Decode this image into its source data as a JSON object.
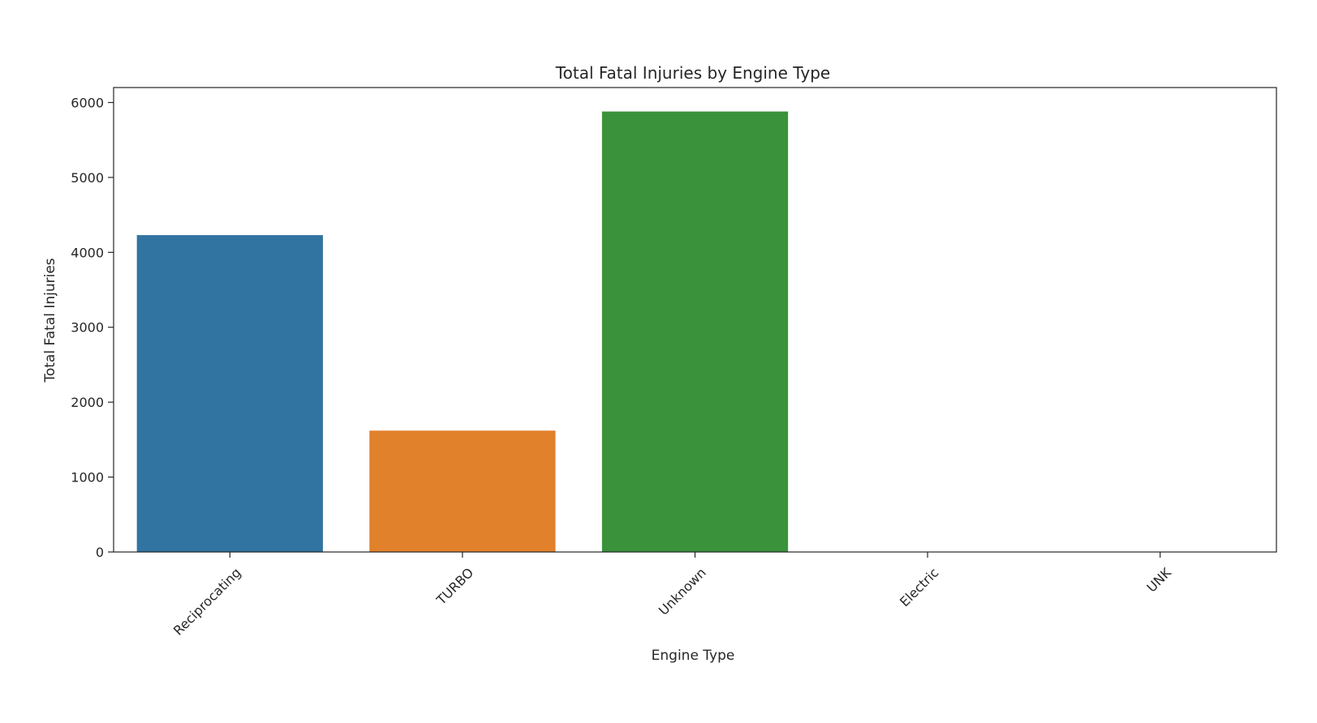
{
  "chart_data": {
    "type": "bar",
    "title": "Total Fatal Injuries by Engine Type",
    "xlabel": "Engine Type",
    "ylabel": "Total Fatal Injuries",
    "categories": [
      "Reciprocating",
      "TURBO",
      "Unknown",
      "Electric",
      "UNK"
    ],
    "values": [
      4230,
      1620,
      5880,
      0,
      0
    ],
    "colors": [
      "#3274a1",
      "#e1812c",
      "#3a923a",
      "#c03d3e",
      "#9372b2"
    ],
    "ylim": [
      0,
      6200
    ],
    "yticks": [
      0,
      1000,
      2000,
      3000,
      4000,
      5000,
      6000
    ],
    "grid": false,
    "legend": "none"
  }
}
